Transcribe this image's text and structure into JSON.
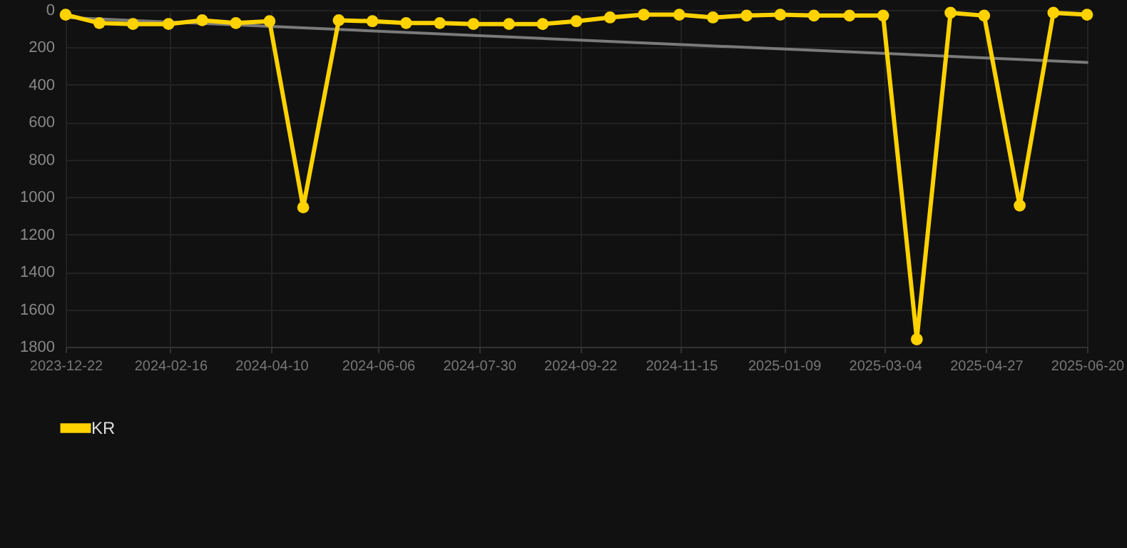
{
  "chart_data": {
    "type": "line",
    "x": [
      "2023-12-22",
      "2024-01-09",
      "2024-01-27",
      "2024-02-15",
      "2024-03-04",
      "2024-03-22",
      "2024-04-09",
      "2024-04-27",
      "2024-05-16",
      "2024-06-03",
      "2024-06-21",
      "2024-07-09",
      "2024-07-27",
      "2024-08-15",
      "2024-09-02",
      "2024-09-20",
      "2024-10-08",
      "2024-10-26",
      "2024-11-14",
      "2024-12-02",
      "2024-12-20",
      "2025-01-07",
      "2025-01-25",
      "2025-02-13",
      "2025-03-03",
      "2025-03-21",
      "2025-04-08",
      "2025-04-26",
      "2025-05-15",
      "2025-06-02",
      "2025-06-20"
    ],
    "series": [
      {
        "type": "line",
        "marker": "none",
        "color": "#7a7a7a",
        "x": [
          "2023-12-22",
          "2025-06-20"
        ],
        "values": [
          40,
          280
        ]
      },
      {
        "name": "KR",
        "color": "#ffd200",
        "values": [
          25,
          70,
          75,
          75,
          55,
          70,
          60,
          1055,
          55,
          60,
          70,
          70,
          75,
          75,
          75,
          60,
          40,
          25,
          25,
          40,
          30,
          25,
          30,
          30,
          30,
          1760,
          15,
          30,
          1045,
          15,
          25
        ]
      }
    ],
    "xlim": [
      "2023-12-22",
      "2025-06-20"
    ],
    "xticks": [
      "2023-12-22",
      "2024-02-16",
      "2024-04-10",
      "2024-06-06",
      "2024-07-30",
      "2024-09-22",
      "2024-11-15",
      "2025-01-09",
      "2025-03-04",
      "2025-04-27",
      "2025-06-20"
    ],
    "ylim": [
      1800,
      0
    ],
    "yticks": [
      0,
      200,
      400,
      600,
      800,
      1000,
      1200,
      1400,
      1600,
      1800
    ],
    "grid": true,
    "legend": "bottom",
    "marker": "circle",
    "line_style": "solid"
  }
}
